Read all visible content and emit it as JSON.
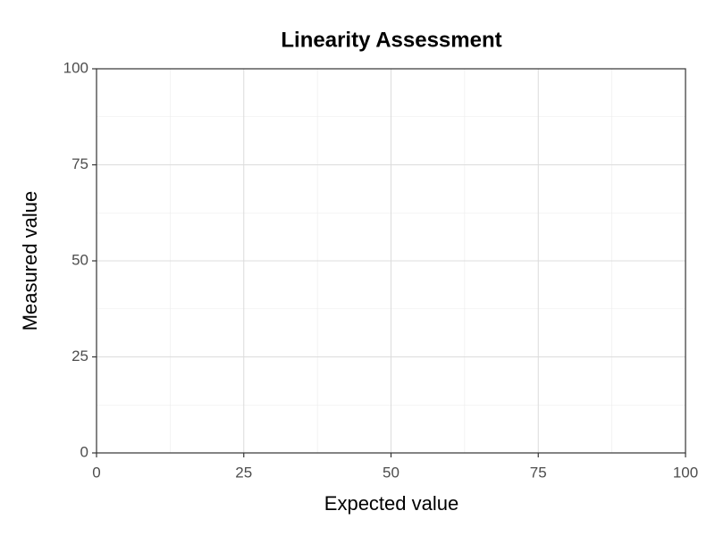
{
  "chart_data": {
    "type": "scatter",
    "title": "Linearity Assessment",
    "xlabel": "Expected value",
    "ylabel": "Measured value",
    "x": [],
    "y": [],
    "xlim": [
      0,
      100
    ],
    "ylim": [
      0,
      100
    ],
    "xticks": [
      0,
      25,
      50,
      75,
      100
    ],
    "yticks": [
      0,
      25,
      50,
      75,
      100
    ],
    "grid": true,
    "minor_grid": true
  }
}
